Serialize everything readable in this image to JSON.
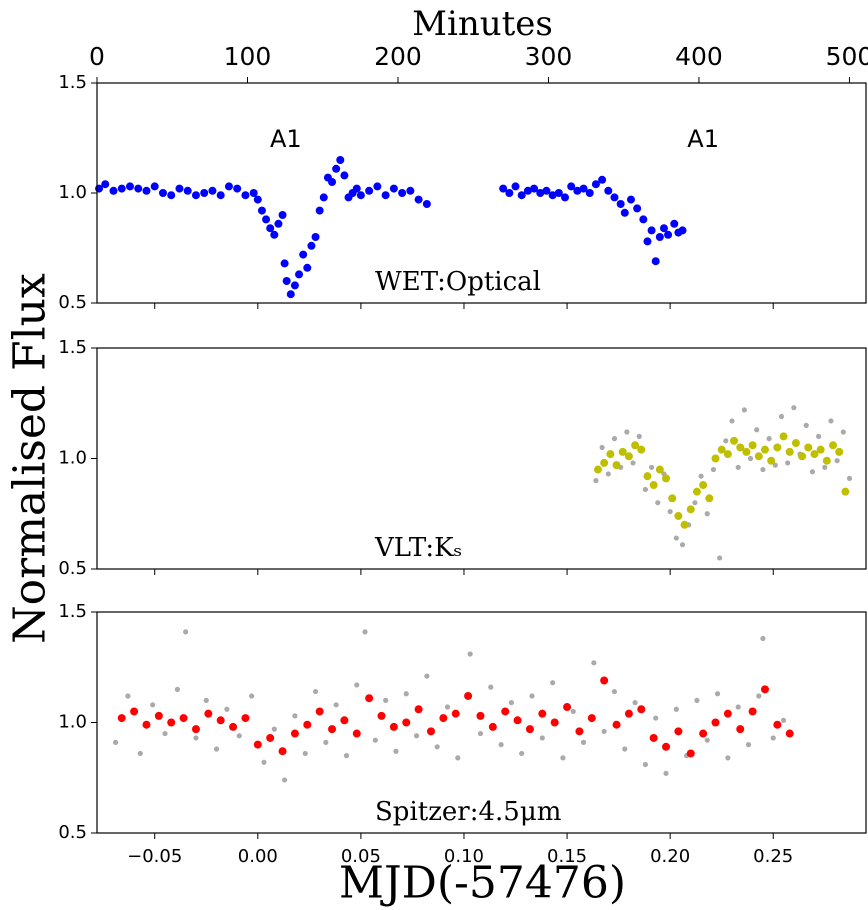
{
  "chart_data": [
    {
      "type": "scatter",
      "label": "WET:Optical",
      "label_color": "#0000ff",
      "xlim": [
        -0.078,
        0.295
      ],
      "ylim": [
        0.5,
        1.5
      ],
      "yticks": [
        0.5,
        {
          "value": 1,
          "label": "1.0"
        },
        1.5
      ],
      "x2label": "Minutes",
      "x2lim": [
        0,
        511
      ],
      "x2ticks": [
        0,
        100,
        200,
        300,
        400,
        500
      ],
      "annotations": [
        {
          "text": "A1",
          "x": 0.0136,
          "y": 1.24
        },
        {
          "text": "A1",
          "x": 0.216,
          "y": 1.24
        }
      ],
      "series": [
        {
          "color": "#0000ff",
          "marker_size": 4,
          "x": [
            -0.077,
            -0.074,
            -0.07,
            -0.066,
            -0.062,
            -0.058,
            -0.054,
            -0.05,
            -0.046,
            -0.042,
            -0.038,
            -0.034,
            -0.03,
            -0.026,
            -0.022,
            -0.018,
            -0.014,
            -0.01,
            -0.006,
            -0.002,
            0.0,
            0.002,
            0.004,
            0.006,
            0.008,
            0.01,
            0.012,
            0.013,
            0.014,
            0.016,
            0.018,
            0.02,
            0.022,
            0.024,
            0.026,
            0.028,
            0.03,
            0.032,
            0.034,
            0.036,
            0.038,
            0.04,
            0.042,
            0.044,
            0.046,
            0.048,
            0.05,
            0.054,
            0.058,
            0.062,
            0.066,
            0.07,
            0.074,
            0.078,
            0.082,
            0.119,
            0.122,
            0.125,
            0.128,
            0.131,
            0.134,
            0.137,
            0.14,
            0.143,
            0.146,
            0.149,
            0.152,
            0.155,
            0.158,
            0.161,
            0.164,
            0.167,
            0.17,
            0.173,
            0.176,
            0.178,
            0.181,
            0.184,
            0.187,
            0.189,
            0.191,
            0.193,
            0.195,
            0.197,
            0.199,
            0.202,
            0.204,
            0.206
          ],
          "values": [
            1.02,
            1.04,
            1.01,
            1.02,
            1.03,
            1.02,
            1.01,
            1.03,
            1.0,
            0.99,
            1.02,
            1.01,
            0.99,
            1.0,
            1.01,
            0.99,
            1.03,
            1.02,
            0.99,
            1.0,
            0.97,
            0.92,
            0.88,
            0.84,
            0.81,
            0.86,
            0.9,
            0.68,
            0.6,
            0.54,
            0.58,
            0.63,
            0.72,
            0.66,
            0.76,
            0.8,
            0.92,
            0.98,
            1.07,
            1.05,
            1.11,
            1.15,
            1.08,
            0.98,
            1.0,
            1.02,
            0.99,
            1.01,
            1.03,
            0.99,
            1.02,
            1.0,
            1.01,
            0.97,
            0.95,
            1.02,
            1.0,
            1.03,
            0.99,
            1.01,
            1.02,
            1.0,
            1.01,
            0.99,
            1.0,
            0.98,
            1.03,
            1.01,
            1.02,
            1.0,
            1.04,
            1.06,
            1.01,
            0.98,
            0.95,
            0.91,
            0.97,
            0.93,
            0.88,
            0.78,
            0.83,
            0.69,
            0.8,
            0.84,
            0.81,
            0.86,
            0.82,
            0.83
          ]
        }
      ]
    },
    {
      "type": "scatter",
      "label": "VLT:Kₛ",
      "label_color": "#bfbf00",
      "ylabel": "Normalised Flux",
      "xlim": [
        -0.078,
        0.295
      ],
      "ylim": [
        0.5,
        1.5
      ],
      "yticks": [
        0.5,
        {
          "value": 1,
          "label": "1.0"
        },
        1.5
      ],
      "series": [
        {
          "color": "#aaaaaa",
          "marker_size": 2.6,
          "x": [
            0.164,
            0.167,
            0.17,
            0.173,
            0.176,
            0.179,
            0.182,
            0.185,
            0.188,
            0.191,
            0.194,
            0.197,
            0.2,
            0.203,
            0.206,
            0.209,
            0.212,
            0.215,
            0.218,
            0.221,
            0.224,
            0.227,
            0.23,
            0.233,
            0.236,
            0.239,
            0.242,
            0.245,
            0.248,
            0.251,
            0.254,
            0.257,
            0.26,
            0.263,
            0.266,
            0.269,
            0.272,
            0.275,
            0.278,
            0.281,
            0.284,
            0.287
          ],
          "values": [
            0.9,
            1.05,
            0.93,
            1.09,
            0.96,
            1.12,
            0.98,
            1.1,
            0.86,
            0.96,
            0.8,
            0.93,
            0.76,
            0.64,
            0.61,
            0.7,
            0.8,
            0.92,
            0.75,
            0.95,
            0.55,
            1.08,
            1.17,
            0.96,
            1.22,
            1.0,
            1.13,
            0.95,
            1.09,
            0.97,
            1.19,
            0.98,
            1.23,
            1.02,
            1.15,
            0.94,
            1.1,
            0.96,
            1.17,
            0.99,
            1.12,
            0.91
          ]
        },
        {
          "color": "#bfbf00",
          "marker_size": 4,
          "x": [
            0.165,
            0.168,
            0.171,
            0.174,
            0.177,
            0.18,
            0.183,
            0.186,
            0.189,
            0.192,
            0.195,
            0.198,
            0.201,
            0.204,
            0.207,
            0.21,
            0.213,
            0.216,
            0.219,
            0.222,
            0.225,
            0.228,
            0.231,
            0.234,
            0.237,
            0.24,
            0.243,
            0.246,
            0.249,
            0.252,
            0.255,
            0.258,
            0.261,
            0.264,
            0.267,
            0.27,
            0.273,
            0.276,
            0.279,
            0.282,
            0.285
          ],
          "values": [
            0.95,
            0.98,
            1.02,
            0.97,
            1.03,
            1.01,
            1.06,
            1.04,
            0.92,
            0.88,
            0.95,
            0.91,
            0.82,
            0.74,
            0.7,
            0.77,
            0.85,
            0.88,
            0.82,
            1.0,
            1.04,
            1.02,
            1.08,
            1.05,
            1.03,
            1.06,
            1.01,
            1.04,
            0.99,
            1.05,
            1.1,
            1.03,
            1.07,
            1.01,
            1.05,
            1.02,
            1.04,
            0.99,
            1.06,
            1.03,
            0.85
          ]
        }
      ]
    },
    {
      "type": "scatter",
      "label": "Spitzer:4.5μm",
      "label_color": "#ff0000",
      "xlabel": "MJD(-57476)",
      "xlim": [
        -0.078,
        0.295
      ],
      "ylim": [
        0.5,
        1.5
      ],
      "yticks": [
        0.5,
        {
          "value": 1,
          "label": "1.0"
        },
        1.5
      ],
      "xticks": [
        {
          "value": -0.05,
          "label": "−0.05"
        },
        {
          "value": 0,
          "label": "0.00"
        },
        0.05,
        {
          "value": 0.1,
          "label": "0.10"
        },
        0.15,
        {
          "value": 0.2,
          "label": "0.20"
        },
        0.25
      ],
      "series": [
        {
          "color": "#aaaaaa",
          "marker_size": 2.6,
          "x": [
            -0.069,
            -0.063,
            -0.057,
            -0.051,
            -0.045,
            -0.039,
            -0.035,
            -0.03,
            -0.025,
            -0.02,
            -0.015,
            -0.009,
            -0.003,
            0.003,
            0.008,
            0.013,
            0.018,
            0.023,
            0.028,
            0.033,
            0.038,
            0.043,
            0.048,
            0.052,
            0.057,
            0.062,
            0.067,
            0.072,
            0.077,
            0.082,
            0.087,
            0.092,
            0.097,
            0.103,
            0.108,
            0.113,
            0.118,
            0.123,
            0.128,
            0.133,
            0.138,
            0.143,
            0.148,
            0.153,
            0.158,
            0.163,
            0.168,
            0.173,
            0.178,
            0.183,
            0.188,
            0.193,
            0.198,
            0.203,
            0.208,
            0.213,
            0.218,
            0.223,
            0.228,
            0.233,
            0.238,
            0.243,
            0.245,
            0.25,
            0.255
          ],
          "values": [
            0.91,
            1.12,
            0.86,
            1.08,
            0.95,
            1.15,
            1.41,
            0.93,
            1.1,
            0.88,
            1.06,
            0.94,
            1.12,
            0.82,
            0.97,
            0.74,
            1.03,
            0.86,
            1.14,
            0.91,
            1.08,
            0.85,
            1.17,
            1.41,
            0.92,
            1.1,
            0.87,
            1.13,
            0.94,
            1.21,
            0.89,
            1.07,
            0.84,
            1.31,
            0.95,
            1.16,
            0.9,
            1.09,
            0.86,
            1.12,
            0.93,
            1.18,
            0.84,
            1.05,
            0.91,
            1.27,
            0.96,
            1.14,
            0.88,
            1.09,
            0.81,
            1.02,
            0.77,
            1.06,
            0.85,
            1.1,
            0.92,
            1.13,
            0.84,
            1.07,
            0.9,
            1.12,
            1.38,
            0.93,
            1.01
          ]
        },
        {
          "color": "#ff0000",
          "marker_size": 4,
          "x": [
            -0.066,
            -0.06,
            -0.054,
            -0.048,
            -0.042,
            -0.036,
            -0.03,
            -0.024,
            -0.018,
            -0.012,
            -0.006,
            0.0,
            0.006,
            0.012,
            0.018,
            0.024,
            0.03,
            0.036,
            0.042,
            0.048,
            0.054,
            0.06,
            0.066,
            0.072,
            0.078,
            0.084,
            0.09,
            0.096,
            0.102,
            0.108,
            0.114,
            0.12,
            0.126,
            0.132,
            0.138,
            0.144,
            0.15,
            0.156,
            0.162,
            0.168,
            0.174,
            0.18,
            0.186,
            0.192,
            0.198,
            0.204,
            0.21,
            0.216,
            0.222,
            0.228,
            0.234,
            0.24,
            0.246,
            0.252,
            0.258
          ],
          "values": [
            1.02,
            1.05,
            0.99,
            1.03,
            1.0,
            1.02,
            0.97,
            1.04,
            1.01,
            0.98,
            1.02,
            0.9,
            0.93,
            0.87,
            0.95,
            0.99,
            1.05,
            0.97,
            1.01,
            0.95,
            1.11,
            1.03,
            0.98,
            1.0,
            1.06,
            0.96,
            1.02,
            1.04,
            1.12,
            1.03,
            0.98,
            1.05,
            1.01,
            0.97,
            1.04,
            1.0,
            1.07,
            0.96,
            1.02,
            1.19,
            0.99,
            1.04,
            1.06,
            0.93,
            0.89,
            0.96,
            0.86,
            0.95,
            1.0,
            1.04,
            0.97,
            1.05,
            1.15,
            0.99,
            0.95
          ]
        }
      ]
    }
  ]
}
